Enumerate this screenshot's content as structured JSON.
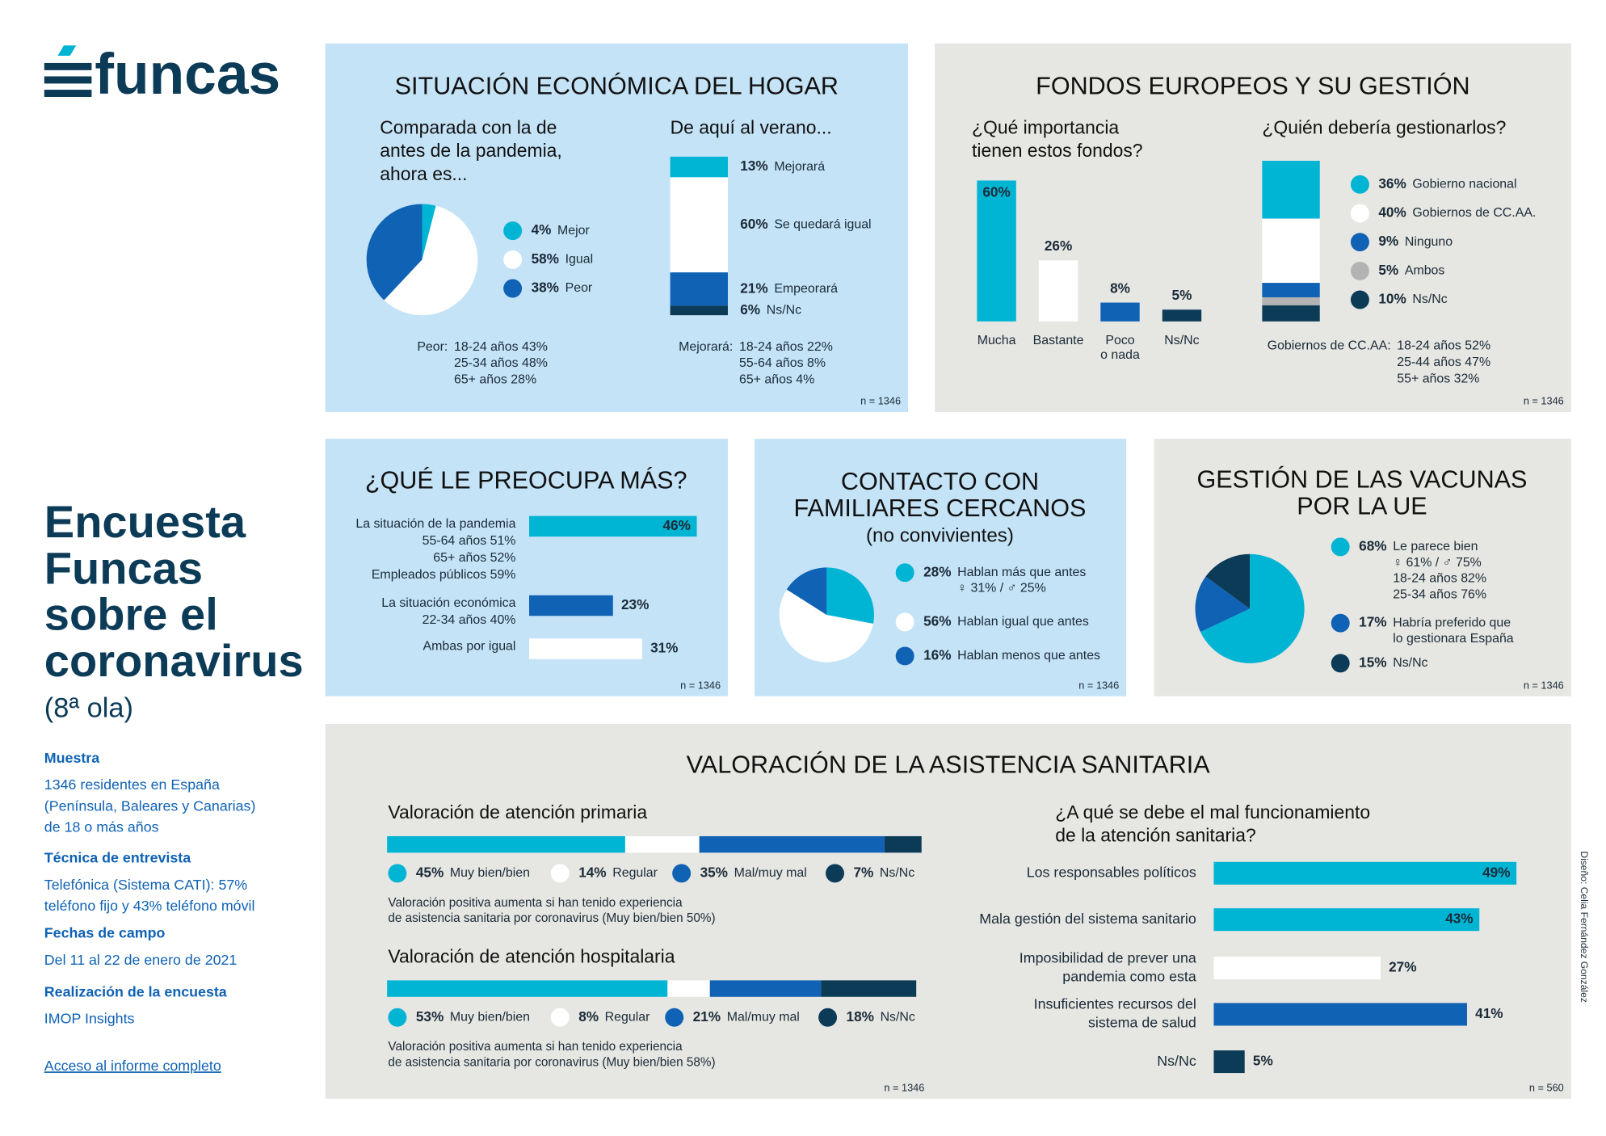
{
  "logo": "funcas",
  "sidebar": {
    "title": [
      "Encuesta",
      "Funcas",
      "sobre el",
      "coronavirus"
    ],
    "subtitle": "(8ª ola)",
    "sections": [
      {
        "heading": "Muestra",
        "lines": [
          "1346 residentes en España",
          "(Península, Baleares y Canarias)",
          "de 18 o más años"
        ]
      },
      {
        "heading": "Técnica de entrevista",
        "lines": [
          "Telefónica (Sistema CATI): 57%",
          "teléfono fijo y 43% teléfono móvil"
        ]
      },
      {
        "heading": "Fechas de campo",
        "lines": [
          "Del 11 al 22 de enero de 2021"
        ]
      },
      {
        "heading": "Realización de la encuesta",
        "lines": [
          "IMOP Insights"
        ]
      }
    ],
    "link": "Acceso al informe completo"
  },
  "credit": "Diseño: Celia Fernández González",
  "panels": [
    {
      "title": [
        "SITUACIÓN ECONÓMICA DEL HOGAR"
      ],
      "sample": "n = 1346"
    },
    {
      "title": [
        "FONDOS EUROPEOS Y SU GESTIÓN"
      ],
      "sample": "n = 1346"
    },
    {
      "title": [
        "¿QUÉ LE PREOCUPA MÁS?"
      ],
      "sample": "n = 1346"
    },
    {
      "title": [
        "CONTACTO CON",
        "FAMILIARES CERCANOS"
      ],
      "subtitle": "(no convivientes)",
      "sample": "n = 1346"
    },
    {
      "title": [
        "GESTIÓN DE LAS VACUNAS",
        "POR LA UE"
      ],
      "sample": "n = 1346"
    },
    {
      "title": [
        "VALORACIÓN DE LA ASISTENCIA SANITARIA"
      ],
      "sample": "n = 1346"
    }
  ],
  "chart_data": [
    {
      "type": "pie",
      "title": [
        "Comparada con la de",
        "antes de la pandemia,",
        "ahora es..."
      ],
      "categories": [
        [
          "Mejor"
        ],
        [
          "Igual"
        ],
        [
          "Peor"
        ]
      ],
      "values": [
        4,
        58,
        38
      ],
      "value_labels": [
        "4%",
        "58%",
        "38%"
      ],
      "colors": [
        "#00b4d4",
        "#ffffff",
        "#0f62b4"
      ],
      "notes": {
        "label": "Peor:",
        "lines": [
          "18-24 años 43%",
          "25-34 años 48%",
          "65+ años 28%"
        ]
      }
    },
    {
      "type": "stacked-column",
      "title": [
        "De aquí al verano..."
      ],
      "series": [
        {
          "name": "Mejorará",
          "color": "#00b4d4",
          "values": [
            13
          ],
          "value_labels": [
            "13%"
          ]
        },
        {
          "name": "Se quedará igual",
          "color": "#ffffff",
          "values": [
            60
          ],
          "value_labels": [
            "60%"
          ]
        },
        {
          "name": "Empeorará",
          "color": "#0f62b4",
          "values": [
            21
          ],
          "value_labels": [
            "21%"
          ]
        },
        {
          "name": "Ns/Nc",
          "color": "#0c3b57",
          "values": [
            6
          ],
          "value_labels": [
            "6%"
          ]
        }
      ],
      "notes": {
        "label": "Mejorará:",
        "lines": [
          "18-24 años 22%",
          "55-64 años 8%",
          "65+ años 4%"
        ]
      }
    },
    {
      "type": "bar",
      "title": [
        "¿Qué importancia",
        "tienen estos fondos?"
      ],
      "categories": [
        [
          "Mucha"
        ],
        [
          "Bastante"
        ],
        [
          "Poco",
          "o nada"
        ],
        [
          "Ns/Nc"
        ]
      ],
      "values": [
        60,
        26,
        8,
        5
      ],
      "value_labels": [
        "60%",
        "26%",
        "8%",
        "5%"
      ],
      "colors": [
        "#00b4d4",
        "#ffffff",
        "#0f62b4",
        "#0c3b57"
      ]
    },
    {
      "type": "stacked-column",
      "title": [
        "¿Quién debería gestionarlos?"
      ],
      "series": [
        {
          "name": "Gobierno nacional",
          "color": "#00b4d4",
          "values": [
            36
          ],
          "value_labels": [
            "36%"
          ]
        },
        {
          "name": "Gobiernos de CC.AA.",
          "color": "#ffffff",
          "values": [
            40
          ],
          "value_labels": [
            "40%"
          ]
        },
        {
          "name": "Ninguno",
          "color": "#0f62b4",
          "values": [
            9
          ],
          "value_labels": [
            "9%"
          ]
        },
        {
          "name": "Ambos",
          "color": "#b3b3b3",
          "values": [
            5
          ],
          "value_labels": [
            "5%"
          ]
        },
        {
          "name": "Ns/Nc",
          "color": "#0c3b57",
          "values": [
            10
          ],
          "value_labels": [
            "10%"
          ]
        }
      ],
      "notes": {
        "label": "Gobiernos de CC.AA:",
        "lines": [
          "18-24 años 52%",
          "25-44 años 47%",
          "55+ años 32%"
        ]
      }
    },
    {
      "type": "hbar",
      "categories": [
        [
          "La situación de la pandemia",
          "55-64 años 51%",
          "65+ años 52%",
          "Empleados públicos 59%"
        ],
        [
          "La situación económica",
          "22-34 años 40%"
        ],
        [
          "Ambas por igual"
        ]
      ],
      "values": [
        46,
        23,
        31
      ],
      "value_labels": [
        "46%",
        "23%",
        "31%"
      ],
      "colors": [
        "#00b4d4",
        "#0f62b4",
        "#ffffff"
      ]
    },
    {
      "type": "pie",
      "categories": [
        [
          "Hablan más que antes",
          "♀ 31%  /  ♂ 25%"
        ],
        [
          "Hablan igual que antes"
        ],
        [
          "Hablan menos que antes"
        ]
      ],
      "values": [
        28,
        56,
        16
      ],
      "value_labels": [
        "28%",
        "56%",
        "16%"
      ],
      "colors": [
        "#00b4d4",
        "#ffffff",
        "#0f62b4"
      ]
    },
    {
      "type": "pie",
      "categories": [
        [
          "Le parece bien",
          "♀ 61%  /  ♂ 75%",
          "18-24 años 82%",
          "25-34 años 76%"
        ],
        [
          "Habría preferido que",
          "lo gestionara España"
        ],
        [
          "Ns/Nc"
        ]
      ],
      "values": [
        68,
        17,
        15
      ],
      "value_labels": [
        "68%",
        "17%",
        "15%"
      ],
      "colors": [
        "#00b4d4",
        "#0f62b4",
        "#0c3b57"
      ]
    },
    {
      "type": "stacked-hbar",
      "title": [
        "Valoración de atención primaria"
      ],
      "series": [
        {
          "name": "Muy bien/bien",
          "color": "#00b4d4",
          "values": [
            45
          ],
          "value_labels": [
            "45%"
          ]
        },
        {
          "name": "Regular",
          "color": "#ffffff",
          "values": [
            14
          ],
          "value_labels": [
            "14%"
          ]
        },
        {
          "name": "Mal/muy mal",
          "color": "#0f62b4",
          "values": [
            35
          ],
          "value_labels": [
            "35%"
          ]
        },
        {
          "name": "Ns/Nc",
          "color": "#0c3b57",
          "values": [
            7
          ],
          "value_labels": [
            "7%"
          ]
        }
      ],
      "note": [
        "Valoración positiva aumenta si han tenido experiencia",
        "de asistencia sanitaria por coronavirus (Muy bien/bien 50%)"
      ]
    },
    {
      "type": "stacked-hbar",
      "title": [
        "Valoración de atención hospitalaria"
      ],
      "series": [
        {
          "name": "Muy bien/bien",
          "color": "#00b4d4",
          "values": [
            53
          ],
          "value_labels": [
            "53%"
          ]
        },
        {
          "name": "Regular",
          "color": "#ffffff",
          "values": [
            8
          ],
          "value_labels": [
            "8%"
          ]
        },
        {
          "name": "Mal/muy mal",
          "color": "#0f62b4",
          "values": [
            21
          ],
          "value_labels": [
            "21%"
          ]
        },
        {
          "name": "Ns/Nc",
          "color": "#0c3b57",
          "values": [
            18
          ],
          "value_labels": [
            "18%"
          ]
        }
      ],
      "note": [
        "Valoración positiva aumenta si han tenido experiencia",
        "de asistencia sanitaria por coronavirus (Muy bien/bien 58%)"
      ]
    },
    {
      "type": "hbar",
      "title": [
        "¿A qué se debe el mal funcionamiento",
        "de la atención sanitaria?"
      ],
      "categories": [
        [
          "Los responsables políticos"
        ],
        [
          "Mala gestión del sistema sanitario"
        ],
        [
          "Imposibilidad de prever una",
          "pandemia como esta"
        ],
        [
          "Insuficientes recursos del",
          "sistema de salud"
        ],
        [
          "Ns/Nc"
        ]
      ],
      "values": [
        49,
        43,
        27,
        41,
        5
      ],
      "value_labels": [
        "49%",
        "43%",
        "27%",
        "41%",
        "5%"
      ],
      "colors": [
        "#00b4d4",
        "#00b4d4",
        "#ffffff",
        "#0f62b4",
        "#0c3b57"
      ],
      "sample": "n = 560"
    }
  ]
}
